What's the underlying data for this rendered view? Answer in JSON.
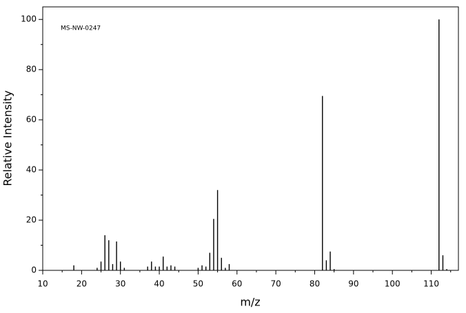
{
  "chart_data": {
    "type": "stem",
    "annotation": "MS-NW-0247",
    "x_label": "m/z",
    "y_label": "Relative Intensity",
    "x": [
      18,
      24,
      25,
      26,
      27,
      28,
      29,
      30,
      31,
      37,
      38,
      39,
      40,
      41,
      42,
      43,
      44,
      50,
      51,
      52,
      53,
      54,
      55,
      56,
      57,
      58,
      82,
      83,
      84,
      85,
      112,
      113,
      114
    ],
    "values": [
      2,
      1,
      3.5,
      14,
      12,
      2.5,
      11.5,
      3.5,
      1,
      1.5,
      3.5,
      1.5,
      1.5,
      5.5,
      1.5,
      2,
      1.5,
      1,
      2,
      1.5,
      7,
      20.5,
      32,
      5,
      1,
      2.5,
      69.5,
      4,
      7.5,
      0.5,
      100,
      6,
      0.5
    ],
    "color": "#000000",
    "xlim": [
      10,
      117
    ],
    "xticks": [
      10,
      20,
      30,
      40,
      50,
      60,
      70,
      80,
      90,
      100,
      110
    ],
    "xminorticks": [
      15,
      25,
      35,
      45,
      55,
      65,
      75,
      85,
      95,
      105,
      115
    ],
    "ylim": [
      0,
      105
    ],
    "yticks": [
      0,
      20,
      40,
      60,
      80,
      100
    ],
    "yminorticks": [
      10,
      30,
      50,
      70,
      90
    ]
  }
}
